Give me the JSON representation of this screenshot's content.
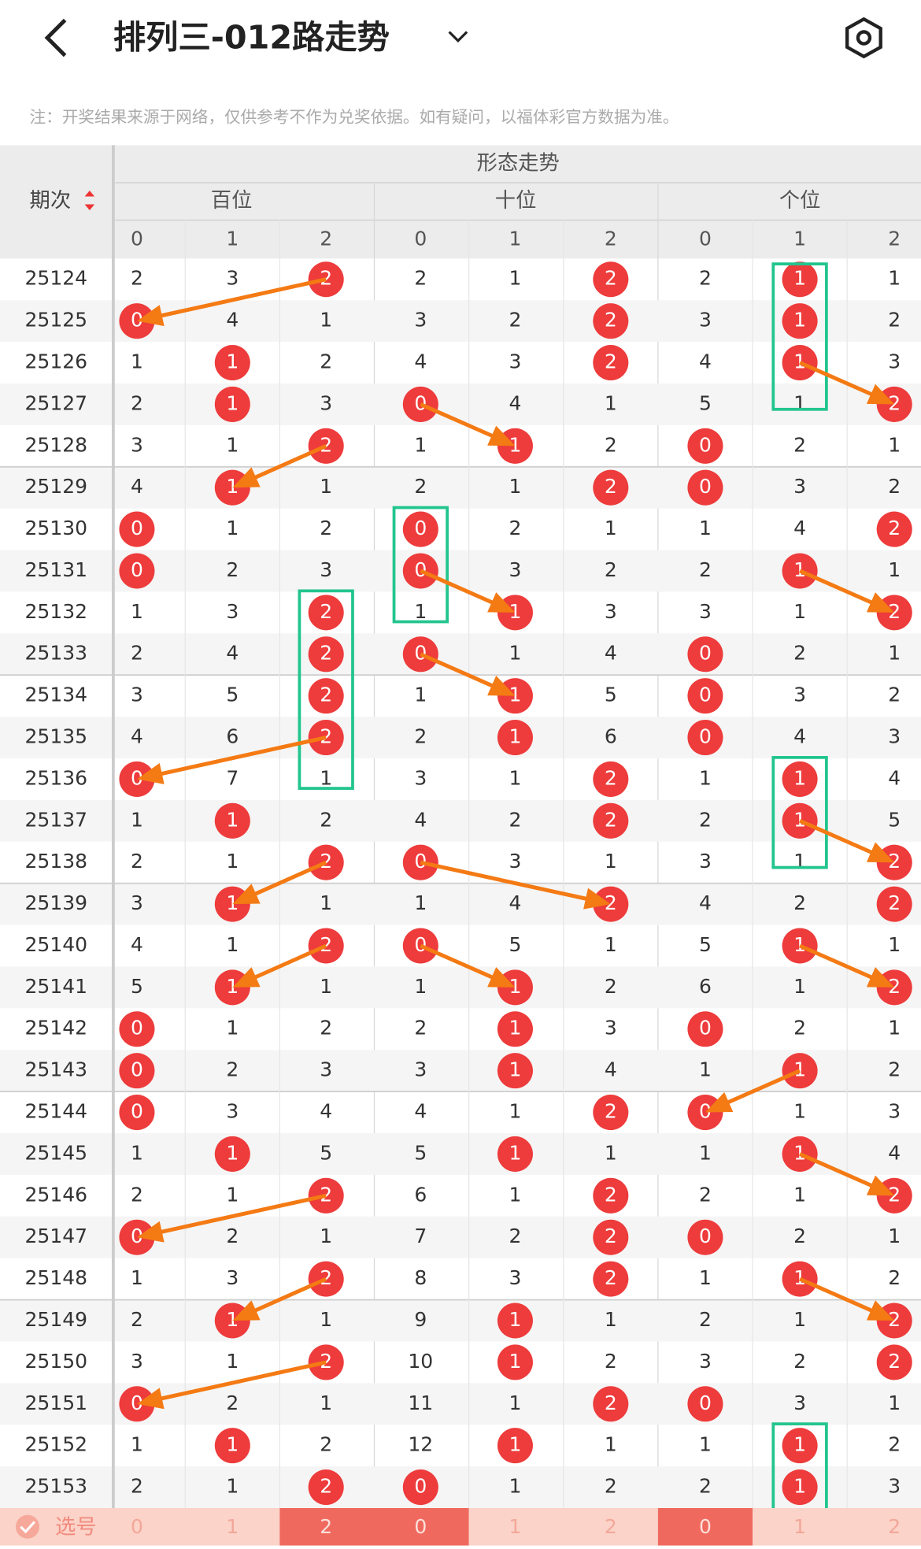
{
  "header": {
    "title": "排列三-012路走势"
  },
  "note": "注：开奖结果来源于网络，仅供参考不作为兑奖依据。如有疑问，以福体彩官方数据为准。",
  "table": {
    "period_header": "期次",
    "group_header": "形态走势",
    "groups": [
      "百位",
      "十位",
      "个位"
    ],
    "digits": [
      "0",
      "1",
      "2"
    ],
    "rows": [
      {
        "period": "25124",
        "cells": [
          2,
          3,
          2,
          2,
          1,
          2,
          2,
          1,
          1
        ],
        "hits": [
          2,
          2,
          1
        ]
      },
      {
        "period": "25125",
        "cells": [
          0,
          4,
          1,
          3,
          2,
          2,
          3,
          1,
          2
        ],
        "hits": [
          0,
          2,
          1
        ]
      },
      {
        "period": "25126",
        "cells": [
          1,
          1,
          2,
          4,
          3,
          2,
          4,
          1,
          3
        ],
        "hits": [
          1,
          2,
          1
        ]
      },
      {
        "period": "25127",
        "cells": [
          2,
          1,
          3,
          0,
          4,
          1,
          5,
          1,
          2
        ],
        "hits": [
          1,
          0,
          2
        ]
      },
      {
        "period": "25128",
        "cells": [
          3,
          1,
          2,
          1,
          1,
          2,
          0,
          2,
          1
        ],
        "hits": [
          2,
          1,
          0
        ]
      },
      {
        "period": "25129",
        "cells": [
          4,
          1,
          1,
          2,
          1,
          2,
          0,
          3,
          2
        ],
        "hits": [
          1,
          2,
          0
        ]
      },
      {
        "period": "25130",
        "cells": [
          0,
          1,
          2,
          0,
          2,
          1,
          1,
          4,
          2
        ],
        "hits": [
          0,
          0,
          2
        ]
      },
      {
        "period": "25131",
        "cells": [
          0,
          2,
          3,
          0,
          3,
          2,
          2,
          1,
          1
        ],
        "hits": [
          0,
          0,
          1
        ]
      },
      {
        "period": "25132",
        "cells": [
          1,
          3,
          2,
          1,
          1,
          3,
          3,
          1,
          2
        ],
        "hits": [
          2,
          1,
          2
        ]
      },
      {
        "period": "25133",
        "cells": [
          2,
          4,
          2,
          0,
          1,
          4,
          0,
          2,
          1
        ],
        "hits": [
          2,
          0,
          0
        ]
      },
      {
        "period": "25134",
        "cells": [
          3,
          5,
          2,
          1,
          1,
          5,
          0,
          3,
          2
        ],
        "hits": [
          2,
          1,
          0
        ]
      },
      {
        "period": "25135",
        "cells": [
          4,
          6,
          2,
          2,
          1,
          6,
          0,
          4,
          3
        ],
        "hits": [
          2,
          1,
          0
        ]
      },
      {
        "period": "25136",
        "cells": [
          0,
          7,
          1,
          3,
          1,
          2,
          1,
          1,
          4
        ],
        "hits": [
          0,
          2,
          1
        ]
      },
      {
        "period": "25137",
        "cells": [
          1,
          1,
          2,
          4,
          2,
          2,
          2,
          1,
          5
        ],
        "hits": [
          1,
          2,
          1
        ]
      },
      {
        "period": "25138",
        "cells": [
          2,
          1,
          2,
          0,
          3,
          1,
          3,
          1,
          2
        ],
        "hits": [
          2,
          0,
          2
        ]
      },
      {
        "period": "25139",
        "cells": [
          3,
          1,
          1,
          1,
          4,
          2,
          4,
          2,
          2
        ],
        "hits": [
          1,
          2,
          2
        ]
      },
      {
        "period": "25140",
        "cells": [
          4,
          1,
          2,
          0,
          5,
          1,
          5,
          1,
          1
        ],
        "hits": [
          2,
          0,
          1
        ]
      },
      {
        "period": "25141",
        "cells": [
          5,
          1,
          1,
          1,
          1,
          2,
          6,
          1,
          2
        ],
        "hits": [
          1,
          1,
          2
        ]
      },
      {
        "period": "25142",
        "cells": [
          0,
          1,
          2,
          2,
          1,
          3,
          0,
          2,
          1
        ],
        "hits": [
          0,
          1,
          0
        ]
      },
      {
        "period": "25143",
        "cells": [
          0,
          2,
          3,
          3,
          1,
          4,
          1,
          1,
          2
        ],
        "hits": [
          0,
          1,
          1
        ]
      },
      {
        "period": "25144",
        "cells": [
          0,
          3,
          4,
          4,
          1,
          2,
          0,
          1,
          3
        ],
        "hits": [
          0,
          2,
          0
        ]
      },
      {
        "period": "25145",
        "cells": [
          1,
          1,
          5,
          5,
          1,
          1,
          1,
          1,
          4
        ],
        "hits": [
          1,
          1,
          1
        ]
      },
      {
        "period": "25146",
        "cells": [
          2,
          1,
          2,
          6,
          1,
          2,
          2,
          1,
          2
        ],
        "hits": [
          2,
          2,
          2
        ]
      },
      {
        "period": "25147",
        "cells": [
          0,
          2,
          1,
          7,
          2,
          2,
          0,
          2,
          1
        ],
        "hits": [
          0,
          2,
          0
        ]
      },
      {
        "period": "25148",
        "cells": [
          1,
          3,
          2,
          8,
          3,
          2,
          1,
          1,
          2
        ],
        "hits": [
          2,
          2,
          1
        ]
      },
      {
        "period": "25149",
        "cells": [
          2,
          1,
          1,
          9,
          1,
          1,
          2,
          1,
          2
        ],
        "hits": [
          1,
          1,
          2
        ]
      },
      {
        "period": "25150",
        "cells": [
          3,
          1,
          2,
          10,
          1,
          2,
          3,
          2,
          2
        ],
        "hits": [
          2,
          1,
          2
        ]
      },
      {
        "period": "25151",
        "cells": [
          0,
          2,
          1,
          11,
          1,
          2,
          0,
          3,
          1
        ],
        "hits": [
          0,
          2,
          0
        ]
      },
      {
        "period": "25152",
        "cells": [
          1,
          1,
          2,
          12,
          1,
          1,
          1,
          1,
          2
        ],
        "hits": [
          1,
          1,
          1
        ]
      },
      {
        "period": "25153",
        "cells": [
          2,
          1,
          2,
          0,
          1,
          2,
          2,
          1,
          3
        ],
        "hits": [
          2,
          0,
          1
        ]
      }
    ],
    "footer": {
      "label": "选号",
      "cells": [
        0,
        1,
        2,
        0,
        1,
        2,
        0,
        1,
        2
      ],
      "selected": [
        2,
        0,
        0
      ]
    }
  }
}
